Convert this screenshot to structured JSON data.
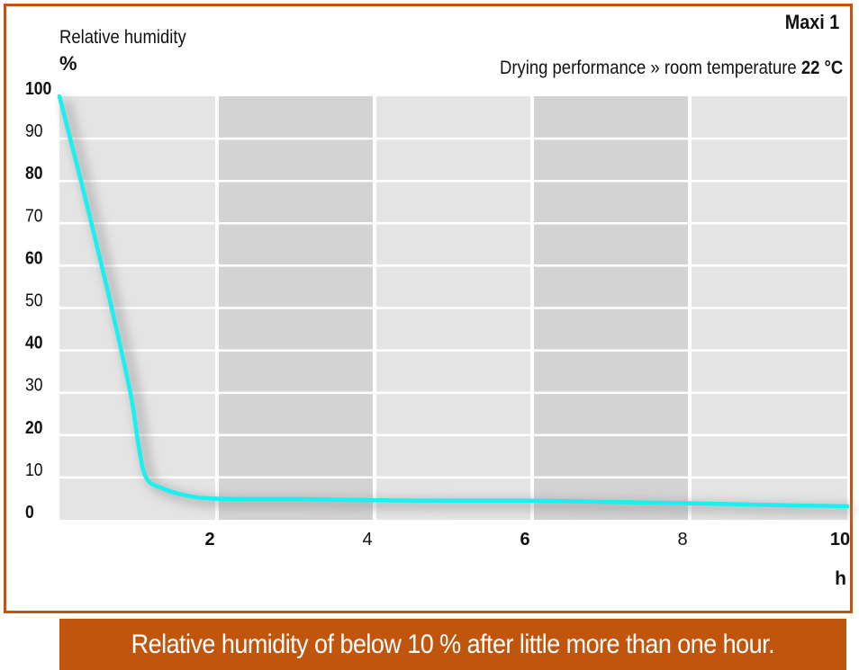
{
  "header": {
    "model": "Maxi 1",
    "subtitle_prefix": "Drying performance » room temperature ",
    "subtitle_value": "22 °C"
  },
  "footer": {
    "caption": "Relative humidity of below 10 % after little more than one hour."
  },
  "colors": {
    "frame": "#c0560d",
    "line": "#19f0f0",
    "band_light": "#e4e4e4",
    "band_dark": "#d3d3d3",
    "grid": "#ffffff"
  },
  "chart_data": {
    "type": "line",
    "title": "",
    "ylabel": "Relative humidity",
    "yunit": "%",
    "xunit": "h",
    "xlim": [
      0,
      10
    ],
    "ylim": [
      0,
      100
    ],
    "grid": true,
    "alternating_bands": true,
    "x_ticks": [
      {
        "value": 2,
        "label": "2",
        "bold": true
      },
      {
        "value": 4,
        "label": "4",
        "bold": false
      },
      {
        "value": 6,
        "label": "6",
        "bold": true
      },
      {
        "value": 8,
        "label": "8",
        "bold": false
      },
      {
        "value": 10,
        "label": "10",
        "bold": true
      }
    ],
    "y_ticks": [
      {
        "value": 0,
        "label": "0",
        "bold": true
      },
      {
        "value": 10,
        "label": "10",
        "bold": false
      },
      {
        "value": 20,
        "label": "20",
        "bold": true
      },
      {
        "value": 30,
        "label": "30",
        "bold": false
      },
      {
        "value": 40,
        "label": "40",
        "bold": true
      },
      {
        "value": 50,
        "label": "50",
        "bold": false
      },
      {
        "value": 60,
        "label": "60",
        "bold": true
      },
      {
        "value": 70,
        "label": "70",
        "bold": false
      },
      {
        "value": 80,
        "label": "80",
        "bold": true
      },
      {
        "value": 90,
        "label": "90",
        "bold": false
      },
      {
        "value": 100,
        "label": "100",
        "bold": true
      }
    ],
    "series": [
      {
        "x": [
          0,
          0.3,
          0.6,
          0.9,
          1.0,
          1.1,
          1.3,
          1.6,
          2.0,
          3.0,
          4.0,
          5.0,
          6.0,
          7.0,
          8.0,
          9.0,
          10.0
        ],
        "y": [
          100,
          78,
          55,
          30,
          18,
          10,
          7.5,
          5.8,
          5.0,
          4.9,
          4.6,
          4.5,
          4.5,
          4.2,
          3.9,
          3.5,
          3.2
        ]
      }
    ]
  }
}
